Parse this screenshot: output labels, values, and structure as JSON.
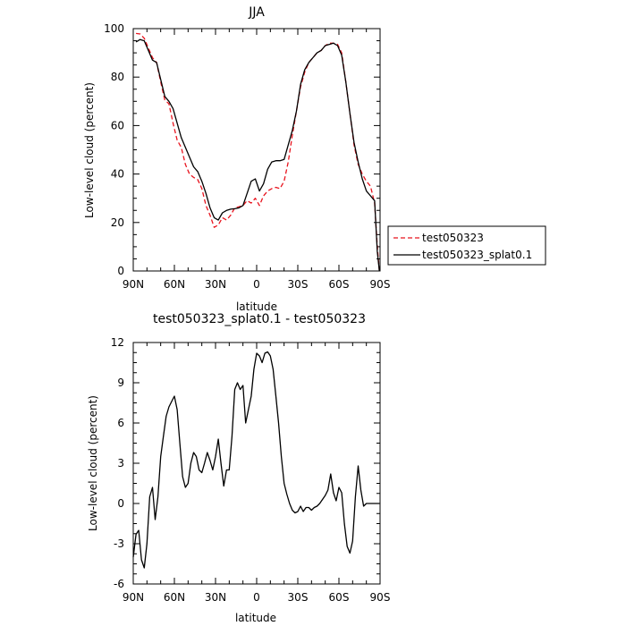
{
  "chart_data": [
    {
      "type": "line",
      "title": "JJA",
      "xlabel": "latitude",
      "ylabel": "Low-level cloud (percent)",
      "xlim": [
        90,
        -90
      ],
      "ylim": [
        0,
        100
      ],
      "x_ticks": [
        90,
        60,
        30,
        0,
        -30,
        -60,
        -90
      ],
      "x_tick_labels": [
        "90N",
        "60N",
        "30N",
        "0",
        "30S",
        "60S",
        "90S"
      ],
      "y_ticks": [
        0,
        20,
        40,
        60,
        80,
        100
      ],
      "y_tick_labels": [
        "0",
        "20",
        "40",
        "60",
        "80",
        "100"
      ],
      "legend_position": "outside-right",
      "x": [
        88,
        85,
        82,
        79,
        76,
        73,
        70,
        67,
        64,
        61,
        58,
        55,
        52,
        49,
        46,
        43,
        40,
        37,
        34,
        31,
        28,
        25,
        22,
        19,
        16,
        13,
        10,
        7,
        4,
        1,
        -2,
        -5,
        -8,
        -11,
        -14,
        -17,
        -20,
        -23,
        -26,
        -29,
        -32,
        -35,
        -38,
        -41,
        -44,
        -47,
        -50,
        -53,
        -56,
        -59,
        -62,
        -65,
        -68,
        -71,
        -74,
        -77,
        -80,
        -83,
        -86,
        -88,
        -89.5
      ],
      "series": [
        {
          "name": "test050323",
          "color": "#e8141e",
          "dash": "dashed",
          "values": [
            98.0,
            97.8,
            96.0,
            92.0,
            88.0,
            86.0,
            78.0,
            70.5,
            69.0,
            61.0,
            54.0,
            51.0,
            44.0,
            40.0,
            38.6,
            37.7,
            34.0,
            27.0,
            23.0,
            18.0,
            19.0,
            22.0,
            21.0,
            23.0,
            26.0,
            26.5,
            27.0,
            29.0,
            28.0,
            30.0,
            27.0,
            31.0,
            33.0,
            34.0,
            34.5,
            34.0,
            37.0,
            45.0,
            56.0,
            66.0,
            76.0,
            82.0,
            86.0,
            88.0,
            90.0,
            91.0,
            93.0,
            94.0,
            94.0,
            93.5,
            90.0,
            78.0,
            65.0,
            52.0,
            44.0,
            40.0,
            37.0,
            35.0,
            28.0,
            10.0,
            0.0
          ]
        },
        {
          "name": "test050323_splat0.1",
          "color": "#000000",
          "dash": "solid",
          "values": [
            94.5,
            95.5,
            95.0,
            91.0,
            87.0,
            86.0,
            79.0,
            72.0,
            70.0,
            67.0,
            61.0,
            55.0,
            51.0,
            47.0,
            43.0,
            41.0,
            37.0,
            32.0,
            26.0,
            22.0,
            21.0,
            24.0,
            25.0,
            25.5,
            25.7,
            26.0,
            27.0,
            32.0,
            37.0,
            38.0,
            33.0,
            36.0,
            42.0,
            45.0,
            45.5,
            45.5,
            46.0,
            52.0,
            58.0,
            66.0,
            77.0,
            83.0,
            86.0,
            88.0,
            90.0,
            91.0,
            93.0,
            93.5,
            94.0,
            93.0,
            89.0,
            78.0,
            65.0,
            53.0,
            45.0,
            38.0,
            33.0,
            31.0,
            29.0,
            8.0,
            0.0
          ]
        }
      ]
    },
    {
      "type": "line",
      "title": "test050323_splat0.1 - test050323",
      "xlabel": "latitude",
      "ylabel": "Low-level cloud (percent)",
      "xlim": [
        90,
        -90
      ],
      "ylim": [
        -6,
        12
      ],
      "x_ticks": [
        90,
        60,
        30,
        0,
        -30,
        -60,
        -90
      ],
      "x_tick_labels": [
        "90N",
        "60N",
        "30N",
        "0",
        "30S",
        "60S",
        "90S"
      ],
      "y_ticks": [
        -6,
        -3,
        0,
        3,
        6,
        9,
        12
      ],
      "y_tick_labels": [
        "-6",
        "-3",
        "0",
        "3",
        "6",
        "9",
        "12"
      ],
      "x": [
        90,
        88,
        86,
        84,
        82,
        80,
        78,
        76,
        74,
        72,
        70,
        68,
        66,
        64,
        62,
        60,
        58,
        56,
        54,
        52,
        50,
        48,
        46,
        44,
        42,
        40,
        38,
        36,
        34,
        32,
        30,
        28,
        26,
        24,
        22,
        20,
        18,
        16,
        14,
        12,
        10,
        8,
        6,
        4,
        2,
        0,
        -2,
        -4,
        -6,
        -8,
        -10,
        -12,
        -14,
        -16,
        -18,
        -20,
        -22,
        -24,
        -26,
        -28,
        -30,
        -32,
        -34,
        -36,
        -38,
        -40,
        -42,
        -44,
        -46,
        -48,
        -50,
        -52,
        -54,
        -56,
        -58,
        -60,
        -62,
        -64,
        -66,
        -68,
        -70,
        -72,
        -74,
        -76,
        -78,
        -80,
        -82,
        -84,
        -86,
        -88,
        -89.5
      ],
      "series": [
        {
          "name": "",
          "color": "#000000",
          "dash": "solid",
          "values": [
            -4.0,
            -2.3,
            -2.0,
            -4.2,
            -4.8,
            -3.0,
            0.5,
            1.2,
            -1.2,
            0.5,
            3.5,
            5.0,
            6.5,
            7.2,
            7.6,
            8.0,
            7.0,
            4.5,
            2.0,
            1.2,
            1.5,
            3.0,
            3.8,
            3.5,
            2.5,
            2.3,
            3.0,
            3.8,
            3.2,
            2.5,
            3.5,
            4.8,
            3.0,
            1.3,
            2.5,
            2.5,
            5.0,
            8.5,
            9.0,
            8.5,
            8.8,
            6.0,
            7.0,
            8.0,
            10.0,
            11.2,
            11.0,
            10.5,
            11.2,
            11.3,
            11.0,
            10.0,
            8.0,
            6.0,
            3.5,
            1.5,
            0.7,
            0.0,
            -0.5,
            -0.7,
            -0.6,
            -0.2,
            -0.6,
            -0.3,
            -0.3,
            -0.5,
            -0.3,
            -0.2,
            0.0,
            0.3,
            0.6,
            1.0,
            2.2,
            0.8,
            0.2,
            1.2,
            0.8,
            -1.5,
            -3.2,
            -3.7,
            -2.8,
            0.5,
            2.8,
            1.0,
            -0.2,
            0.0,
            0.0,
            0.0,
            0.0,
            0.0,
            0.0
          ]
        }
      ]
    }
  ]
}
